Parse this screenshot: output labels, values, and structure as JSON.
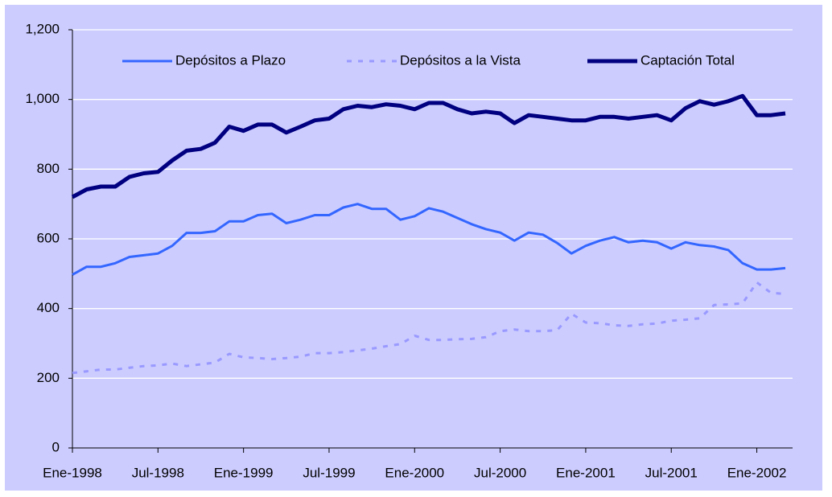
{
  "chart_data": {
    "type": "line",
    "categories": [
      "Ene-1998",
      null,
      null,
      null,
      null,
      null,
      "Jul-1998",
      null,
      null,
      null,
      null,
      null,
      "Ene-1999",
      null,
      null,
      null,
      null,
      null,
      "Jul-1999",
      null,
      null,
      null,
      null,
      null,
      "Ene-2000",
      null,
      null,
      null,
      null,
      null,
      "Jul-2000",
      null,
      null,
      null,
      null,
      null,
      "Ene-2001",
      null,
      null,
      null,
      null,
      null,
      "Jul-2001",
      null,
      null,
      null,
      null,
      null,
      "Ene-2002",
      null,
      null
    ],
    "series": [
      {
        "name": "Depósitos a Plazo",
        "color": "#3366ff",
        "dash": false,
        "width": 3,
        "values": [
          497,
          520,
          520,
          530,
          548,
          553,
          558,
          580,
          617,
          617,
          622,
          650,
          650,
          668,
          672,
          645,
          655,
          668,
          668,
          690,
          700,
          686,
          686,
          655,
          665,
          688,
          678,
          660,
          642,
          628,
          618,
          595,
          618,
          612,
          588,
          558,
          580,
          595,
          605,
          590,
          595,
          590,
          572,
          590,
          582,
          578,
          568,
          530,
          512,
          512,
          516
        ]
      },
      {
        "name": "Depósitos a la Vista",
        "color": "#9999ff",
        "dash": true,
        "width": 3,
        "values": [
          215,
          220,
          225,
          225,
          230,
          235,
          237,
          242,
          235,
          240,
          245,
          270,
          260,
          258,
          255,
          258,
          262,
          272,
          272,
          275,
          280,
          285,
          292,
          298,
          322,
          310,
          310,
          312,
          313,
          318,
          335,
          340,
          335,
          335,
          338,
          385,
          360,
          358,
          352,
          350,
          355,
          357,
          365,
          368,
          372,
          410,
          412,
          415,
          475,
          445,
          442
        ]
      },
      {
        "name": "Captación Total",
        "color": "#000080",
        "dash": false,
        "width": 5,
        "values": [
          720,
          742,
          750,
          750,
          778,
          788,
          792,
          825,
          853,
          858,
          876,
          922,
          910,
          928,
          928,
          905,
          922,
          940,
          945,
          972,
          982,
          978,
          986,
          982,
          972,
          990,
          990,
          972,
          960,
          965,
          960,
          932,
          955,
          950,
          945,
          940,
          940,
          950,
          950,
          945,
          950,
          955,
          940,
          975,
          995,
          985,
          995,
          1010,
          955,
          955,
          960
        ]
      }
    ],
    "ylim": [
      0,
      1200
    ],
    "yticks": [
      0,
      200,
      400,
      600,
      800,
      {
        "value": 1000,
        "label": "1,000"
      },
      {
        "value": 1200,
        "label": "1,200"
      }
    ],
    "grid": true,
    "legend": "top",
    "background": "#ccccff"
  }
}
